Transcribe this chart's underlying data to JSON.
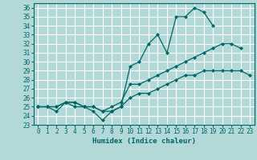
{
  "xlabel": "Humidex (Indice chaleur)",
  "background_color": "#b2d8d8",
  "grid_color": "#ffffff",
  "line_color": "#006666",
  "xlim": [
    -0.5,
    23.5
  ],
  "ylim": [
    23,
    36.5
  ],
  "xticks": [
    0,
    1,
    2,
    3,
    4,
    5,
    6,
    7,
    8,
    9,
    10,
    11,
    12,
    13,
    14,
    15,
    16,
    17,
    18,
    19,
    20,
    21,
    22,
    23
  ],
  "yticks": [
    23,
    24,
    25,
    26,
    27,
    28,
    29,
    30,
    31,
    32,
    33,
    34,
    35,
    36
  ],
  "line1": [
    25,
    25,
    24.5,
    25.5,
    25,
    25,
    24.5,
    23.5,
    24.5,
    25,
    29.5,
    30,
    32,
    33,
    31,
    35,
    35,
    36,
    35.5,
    34,
    null,
    null,
    null,
    null
  ],
  "line2": [
    25,
    25,
    25,
    25.5,
    25.5,
    25,
    25,
    24.5,
    25,
    25.5,
    27.5,
    27.5,
    28,
    28.5,
    29,
    29.5,
    30,
    30.5,
    31,
    31.5,
    32,
    32,
    31.5,
    null
  ],
  "line3": [
    25,
    25,
    25,
    25.5,
    25.5,
    25,
    25,
    24.5,
    24.5,
    25,
    26,
    26.5,
    26.5,
    27,
    27.5,
    28,
    28.5,
    28.5,
    29,
    29,
    29,
    29,
    29,
    28.5
  ]
}
